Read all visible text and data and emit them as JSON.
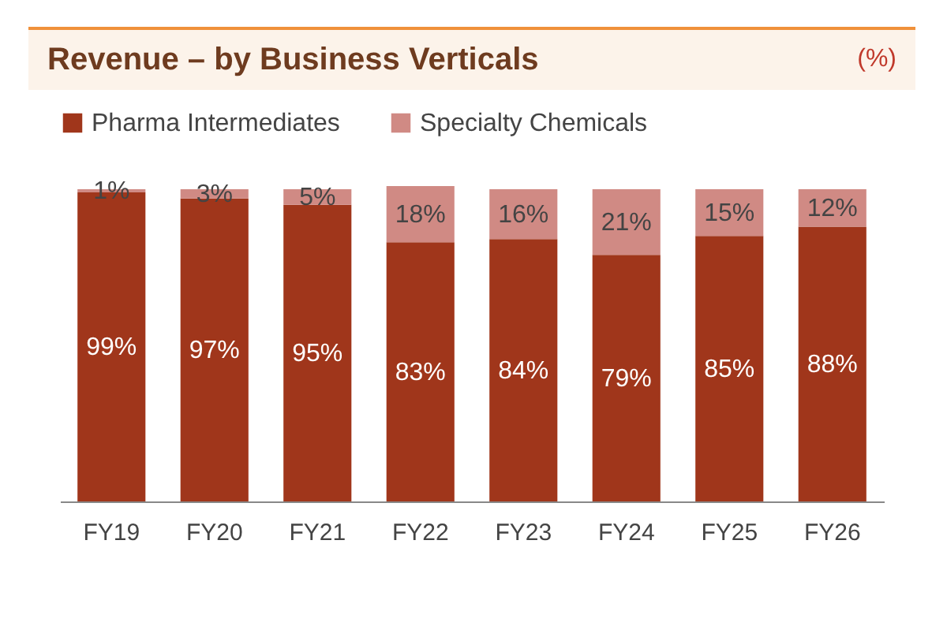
{
  "chart_data": {
    "type": "bar",
    "title": "Revenue – by Business Verticals",
    "subtitle": "(%)",
    "stacked": true,
    "legend": "top",
    "tick_labels": "x",
    "grid": false,
    "categories": [
      "FY19",
      "FY20",
      "FY21",
      "FY22",
      "FY23",
      "FY24",
      "FY25",
      "FY26"
    ],
    "series": [
      {
        "name": "Pharma Intermediates",
        "color": "#a0361b",
        "values": [
          99,
          97,
          95,
          83,
          84,
          79,
          85,
          88
        ],
        "value_labels": [
          "99%",
          "97%",
          "95%",
          "83%",
          "84%",
          "79%",
          "85%",
          "88%"
        ]
      },
      {
        "name": "Specialty Chemicals",
        "color": "#d08a84",
        "values": [
          1,
          3,
          5,
          18,
          16,
          21,
          15,
          12
        ],
        "value_labels": [
          "1%",
          "3%",
          "5%",
          "18%",
          "16%",
          "21%",
          "15%",
          "12%"
        ]
      }
    ]
  }
}
